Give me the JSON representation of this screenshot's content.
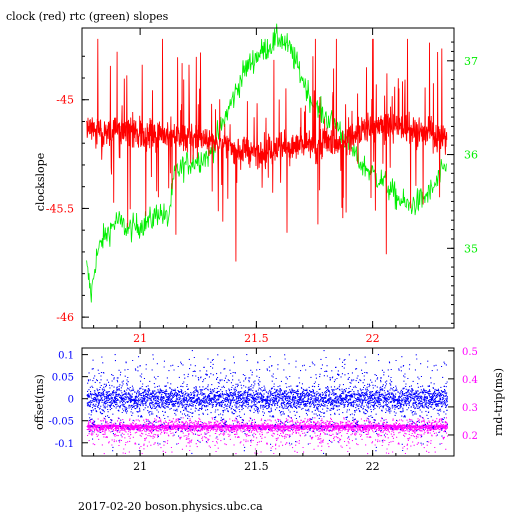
{
  "colors": {
    "frame": "#000000",
    "clock": "#ff0000",
    "rtc": "#00ee00",
    "offset": "#0000ff",
    "rndtrip": "#ff00ff",
    "xtick": "#ff0000"
  },
  "title": "clock (red) rtc (green) slopes",
  "footer": "2017-02-20 boson.physics.ubc.ca",
  "chart_data": [
    {
      "type": "line",
      "title": "clock (red) rtc (green) slopes",
      "xlabel": "",
      "ylabel": "clockslope",
      "xlim": [
        20.75,
        22.35
      ],
      "ylim": [
        -46.05,
        -44.67
      ],
      "y2lim": [
        34.15,
        37.35
      ],
      "xticks": [
        "21",
        "21.5",
        "22"
      ],
      "xtick_values": [
        21,
        21.5,
        22
      ],
      "yticks": [
        "-45",
        "-45.5",
        "-46"
      ],
      "ytick_values": [
        -45,
        -45.5,
        -46
      ],
      "y2ticks": [
        "37",
        "36",
        "35"
      ],
      "y2tick_values": [
        37,
        36,
        35
      ],
      "series": [
        {
          "name": "clock (red)",
          "axis": "left",
          "x": [
            20.77,
            20.8,
            20.85,
            20.9,
            20.95,
            21.0,
            21.05,
            21.1,
            21.15,
            21.2,
            21.25,
            21.3,
            21.35,
            21.4,
            21.45,
            21.5,
            21.55,
            21.6,
            21.65,
            21.7,
            21.75,
            21.8,
            21.85,
            21.9,
            21.95,
            22.0,
            22.05,
            22.1,
            22.15,
            22.2,
            22.25,
            22.3,
            22.32
          ],
          "y": [
            -45.12,
            -45.14,
            -45.15,
            -45.14,
            -45.15,
            -45.15,
            -45.16,
            -45.15,
            -45.16,
            -45.18,
            -45.17,
            -45.19,
            -45.2,
            -45.22,
            -45.23,
            -45.24,
            -45.23,
            -45.22,
            -45.22,
            -45.21,
            -45.21,
            -45.19,
            -45.2,
            -45.18,
            -45.14,
            -45.13,
            -45.12,
            -45.12,
            -45.13,
            -45.14,
            -45.15,
            -45.17,
            -45.19
          ],
          "spread": 0.22
        },
        {
          "name": "rtc (green)",
          "axis": "right",
          "x": [
            20.77,
            20.79,
            20.81,
            20.84,
            20.87,
            20.9,
            20.95,
            21.0,
            21.05,
            21.08,
            21.1,
            21.12,
            21.15,
            21.2,
            21.25,
            21.3,
            21.35,
            21.4,
            21.45,
            21.5,
            21.55,
            21.6,
            21.65,
            21.7,
            21.75,
            21.8,
            21.85,
            21.9,
            21.95,
            22.0,
            22.05,
            22.1,
            22.15,
            22.2,
            22.25,
            22.3,
            22.32
          ],
          "y": [
            34.8,
            34.5,
            34.9,
            35.1,
            35.2,
            35.3,
            35.2,
            35.25,
            35.3,
            35.4,
            35.35,
            35.3,
            35.8,
            35.9,
            35.95,
            36.0,
            36.3,
            36.6,
            36.9,
            37.05,
            37.15,
            37.25,
            37.1,
            36.8,
            36.5,
            36.4,
            36.3,
            36.1,
            35.9,
            35.8,
            35.7,
            35.55,
            35.45,
            35.5,
            35.6,
            35.8,
            35.9
          ],
          "spread": 0.07
        }
      ]
    },
    {
      "type": "scatter",
      "xlabel": "",
      "ylabel": "offset(ms)",
      "y2label": "rnd-trip(ms)",
      "xlim": [
        20.75,
        22.35
      ],
      "ylim": [
        -0.13,
        0.115
      ],
      "y2lim": [
        0.125,
        0.51
      ],
      "xticks": [
        "21",
        "21.5",
        "22"
      ],
      "xtick_values": [
        21,
        21.5,
        22
      ],
      "yticks": [
        "0.1",
        "0.05",
        "0",
        "-0.05",
        "-0.1"
      ],
      "ytick_values": [
        0.1,
        0.05,
        0,
        -0.05,
        -0.1
      ],
      "y2ticks": [
        "0.5",
        "0.4",
        "0.3",
        "0.2"
      ],
      "y2tick_values": [
        0.5,
        0.4,
        0.3,
        0.2
      ],
      "series": [
        {
          "name": "offset",
          "axis": "left",
          "center": 0.0,
          "core_spread": 0.012,
          "tail_spread": 0.045
        },
        {
          "name": "rnd-trip",
          "axis": "right",
          "center": 0.23,
          "core_spread": 0.006,
          "tail_spread": 0.035
        }
      ]
    }
  ]
}
